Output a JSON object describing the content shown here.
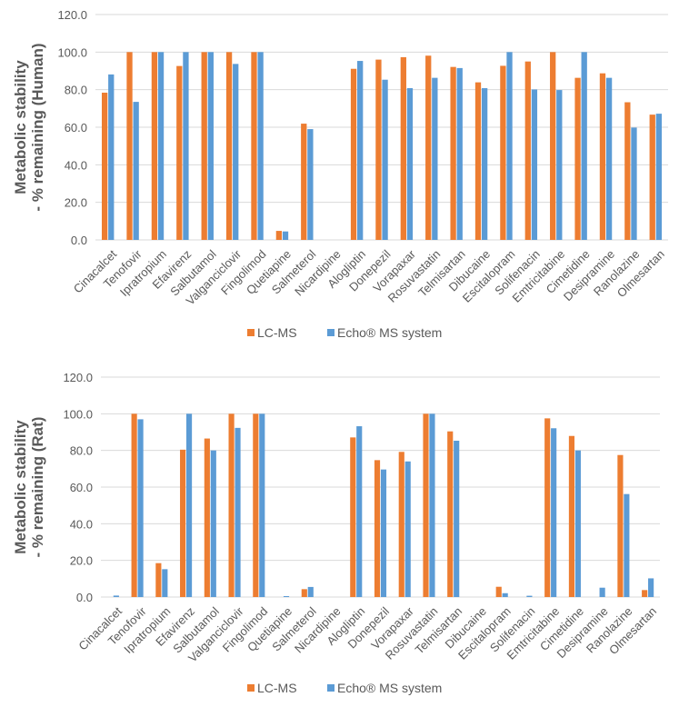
{
  "chart_data": [
    {
      "type": "bar",
      "title": "",
      "xlabel": "",
      "ylabel_line1": "Metabolic stability",
      "ylabel_line2": "- % remaining (Human)",
      "ylim": [
        0,
        120
      ],
      "yticks": [
        "0.0",
        "20.0",
        "40.0",
        "60.0",
        "80.0",
        "100.0",
        "120.0"
      ],
      "grid": true,
      "legend_position": "bottom",
      "categories": [
        "Cinacalcet",
        "Tenofovir",
        "Ipratropium",
        "Efavirenz",
        "Salbutamol",
        "Valganciclovir",
        "Fingolimod",
        "Quetiapine",
        "Salmeterol",
        "Nicardipine",
        "Alogliptin",
        "Donepezil",
        "Vorapaxar",
        "Rosuvastatin",
        "Telmisartan",
        "Dibucaine",
        "Escitalopram",
        "Solifenacin",
        "Emtricitabine",
        "Cimetidine",
        "Desipramine",
        "Ranolazine",
        "Olmesartan"
      ],
      "series": [
        {
          "name": "LC-MS",
          "color": "#ED7D31",
          "values": [
            78.4,
            100,
            100,
            92.6,
            100,
            100,
            100,
            4.8,
            61.9,
            0,
            91.1,
            96.0,
            97.3,
            98.1,
            92.1,
            83.9,
            92.7,
            95.0,
            100,
            86.3,
            88.7,
            73.3,
            66.7
          ]
        },
        {
          "name": "Echo® MS system",
          "color": "#5B9BD5",
          "values": [
            88.1,
            73.5,
            100,
            100,
            100,
            93.7,
            100,
            4.5,
            59.0,
            0,
            95.3,
            85.3,
            80.8,
            86.3,
            91.5,
            80.8,
            100,
            80.1,
            79.8,
            100,
            86.3,
            59.8,
            67.2
          ]
        }
      ]
    },
    {
      "type": "bar",
      "title": "",
      "xlabel": "",
      "ylabel_line1": "Metabolic stability",
      "ylabel_line2": "- % remaining (Rat)",
      "ylim": [
        0,
        120
      ],
      "yticks": [
        "0.0",
        "20.0",
        "40.0",
        "60.0",
        "80.0",
        "100.0",
        "120.0"
      ],
      "grid": true,
      "legend_position": "bottom",
      "categories": [
        "Cinacalcet",
        "Tenofovir",
        "Ipratropium",
        "Efavirenz",
        "Salbutamol",
        "Valganciclovir",
        "Fingolimod",
        "Quetiapine",
        "Salmeterol",
        "Nicardipine",
        "Alogliptin",
        "Donepezil",
        "Vorapaxar",
        "Rosuvastatin",
        "Telmisartan",
        "Dibucaine",
        "Escitalopram",
        "Solifenacin",
        "Emtricitabine",
        "Cimetidine",
        "Desipramine",
        "Ranolazine",
        "Olmesartan"
      ],
      "series": [
        {
          "name": "LC-MS",
          "color": "#ED7D31",
          "values": [
            0,
            100,
            18.5,
            80.4,
            86.5,
            100,
            100,
            0,
            4.3,
            0,
            87.1,
            74.7,
            79.2,
            100,
            90.4,
            0,
            5.6,
            0,
            97.5,
            87.9,
            0,
            77.5,
            3.8
          ]
        },
        {
          "name": "Echo® MS system",
          "color": "#5B9BD5",
          "values": [
            0.8,
            97.0,
            15.2,
            100,
            80.0,
            92.3,
            100,
            0.5,
            5.5,
            0,
            93.2,
            69.6,
            74.0,
            100,
            85.3,
            0,
            2.1,
            0.7,
            92.1,
            80.0,
            5.1,
            56.2,
            10.2
          ]
        }
      ]
    }
  ]
}
